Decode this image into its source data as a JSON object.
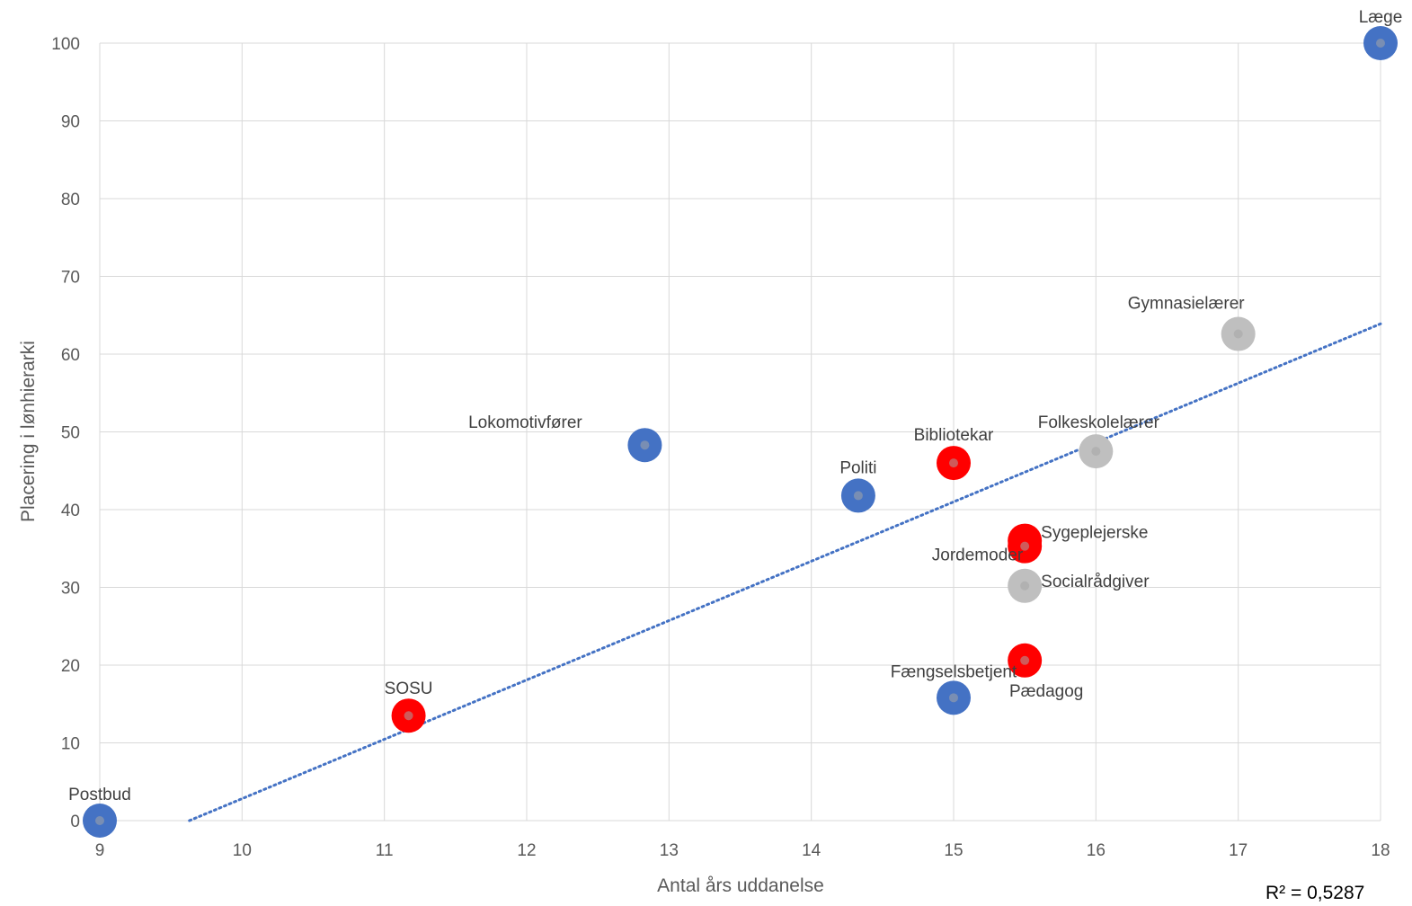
{
  "chart_data": {
    "type": "scatter",
    "xlabel": "Antal års uddanelse",
    "ylabel": "Placering i lønhierarki",
    "xlim": [
      9,
      18
    ],
    "ylim": [
      0,
      100
    ],
    "x_ticks": [
      "9",
      "10",
      "11",
      "12",
      "13",
      "14",
      "15",
      "16",
      "17",
      "18"
    ],
    "y_ticks": [
      "0",
      "10",
      "20",
      "30",
      "40",
      "50",
      "60",
      "70",
      "80",
      "90",
      "100"
    ],
    "grid": true,
    "colors": {
      "blue": "#4472c4",
      "red": "#ff0000",
      "gray": "#bfbfbf",
      "trendline": "#4472c4"
    },
    "points": [
      {
        "label": "Postbud",
        "x": 9,
        "y": 0,
        "color": "blue"
      },
      {
        "label": "SOSU",
        "x": 11.17,
        "y": 13.5,
        "color": "red"
      },
      {
        "label": "Lokomotivfører",
        "x": 12.83,
        "y": 48.3,
        "color": "blue"
      },
      {
        "label": "Politi",
        "x": 14.33,
        "y": 41.8,
        "color": "blue"
      },
      {
        "label": "Bibliotekar",
        "x": 15,
        "y": 46,
        "color": "red"
      },
      {
        "label": "Fængselsbetjent",
        "x": 15,
        "y": 15.8,
        "color": "blue"
      },
      {
        "label": "Sygeplejerske",
        "x": 15.5,
        "y": 36,
        "color": "red"
      },
      {
        "label": "Jordemoder",
        "x": 15.5,
        "y": 35.3,
        "color": "red"
      },
      {
        "label": "Socialrådgiver",
        "x": 15.5,
        "y": 30.2,
        "color": "gray"
      },
      {
        "label": "Pædagog",
        "x": 15.5,
        "y": 20.6,
        "color": "red"
      },
      {
        "label": "Folkeskolelærer",
        "x": 16,
        "y": 47.5,
        "color": "gray"
      },
      {
        "label": "Gymnasielærer",
        "x": 17,
        "y": 62.6,
        "color": "gray"
      },
      {
        "label": "Læge",
        "x": 18,
        "y": 100,
        "color": "blue"
      }
    ],
    "trendline": {
      "type": "linear",
      "style": "dotted",
      "start": {
        "x": 9.63,
        "y": 0
      },
      "end": {
        "x": 18,
        "y": 63.9
      },
      "r_squared": "R² = 0,5287"
    }
  }
}
